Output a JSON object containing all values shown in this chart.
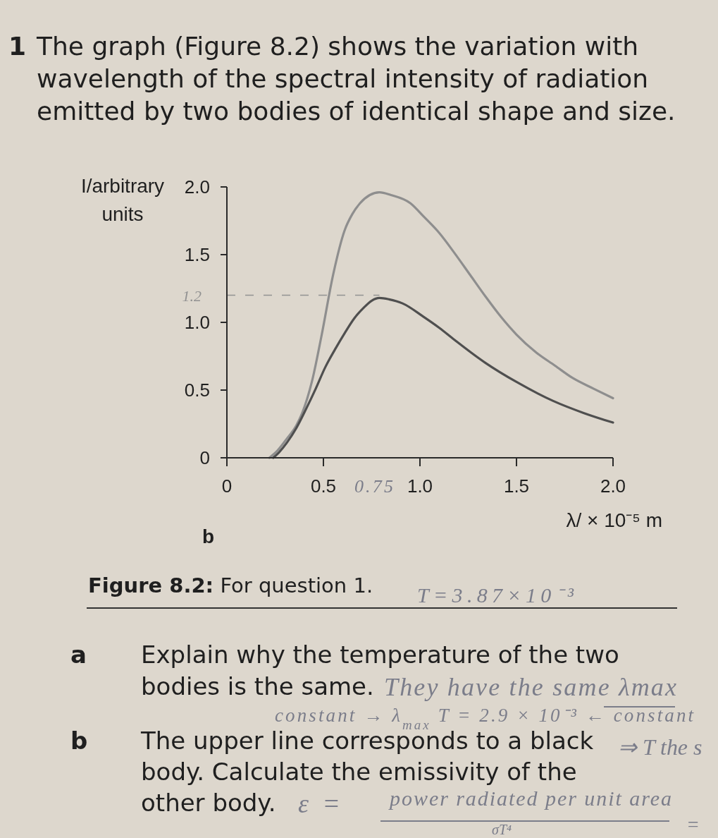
{
  "chart_data": {
    "type": "line",
    "title": "1 The graph (Figure 8.2) shows the variation with wavelength of the spectral intensity of radiation emitted by two bodies of identical shape and size.",
    "xlabel": "λ/ × 10⁻⁵ m",
    "ylabel": "I/arbitrary units",
    "xlim": [
      0,
      2
    ],
    "xticks": [
      0,
      0.5,
      {
        "value": 1,
        "label": "1.0"
      },
      1.5,
      {
        "value": 2,
        "label": "2.0"
      }
    ],
    "ylim": [
      0,
      2
    ],
    "yticks": [
      0,
      0.5,
      {
        "value": 1,
        "label": "1.0"
      },
      1.5,
      {
        "value": 2,
        "label": "2.0"
      }
    ],
    "series": [
      {
        "color": "#8e8e8e",
        "x": [
          0.22,
          0.26,
          0.31,
          0.36,
          0.39,
          0.44,
          0.49,
          0.55,
          0.61,
          0.65,
          0.69,
          0.74,
          0.79,
          0.85,
          0.95,
          1.02,
          1.1,
          1.18,
          1.26,
          1.34,
          1.42,
          1.5,
          1.6,
          1.7,
          1.79,
          1.9,
          2.0
        ],
        "values": [
          0,
          0.05,
          0.14,
          0.24,
          0.33,
          0.56,
          0.9,
          1.35,
          1.68,
          1.8,
          1.88,
          1.94,
          1.96,
          1.94,
          1.88,
          1.78,
          1.66,
          1.51,
          1.35,
          1.19,
          1.04,
          0.91,
          0.78,
          0.68,
          0.59,
          0.51,
          0.44
        ]
      },
      {
        "color": "#4f4f4f",
        "x": [
          0.24,
          0.27,
          0.31,
          0.36,
          0.41,
          0.46,
          0.51,
          0.56,
          0.61,
          0.66,
          0.71,
          0.75,
          0.79,
          0.84,
          0.91,
          1.02,
          1.1,
          1.18,
          1.34,
          1.5,
          1.69,
          1.85,
          2.0
        ],
        "values": [
          0,
          0.04,
          0.11,
          0.22,
          0.36,
          0.51,
          0.67,
          0.8,
          0.92,
          1.03,
          1.11,
          1.16,
          1.18,
          1.17,
          1.14,
          1.04,
          0.96,
          0.87,
          0.7,
          0.56,
          0.42,
          0.33,
          0.26
        ]
      }
    ],
    "grid": false,
    "ref_lines": [
      {
        "axis": "y",
        "value": 1.2,
        "label": "1.2",
        "color": "#929292",
        "line_style": "dashed"
      }
    ],
    "annotations": [
      "0.75",
      "b",
      "Figure 8.2: For question 1.",
      "T=3.87×10⁻³",
      "a Explain why the temperature of the two",
      "bodies is the same.",
      "They have the same λmax",
      "constant → λ$_{max}$ T = 2.9 × 10⁻³ ← constant",
      "b The upper line corresponds to a black",
      "⇒ T the s",
      "body. Calculate the emissivity of the",
      "other body.",
      "ε =",
      "power radiated per unit area",
      "σT⁴",
      "="
    ]
  }
}
